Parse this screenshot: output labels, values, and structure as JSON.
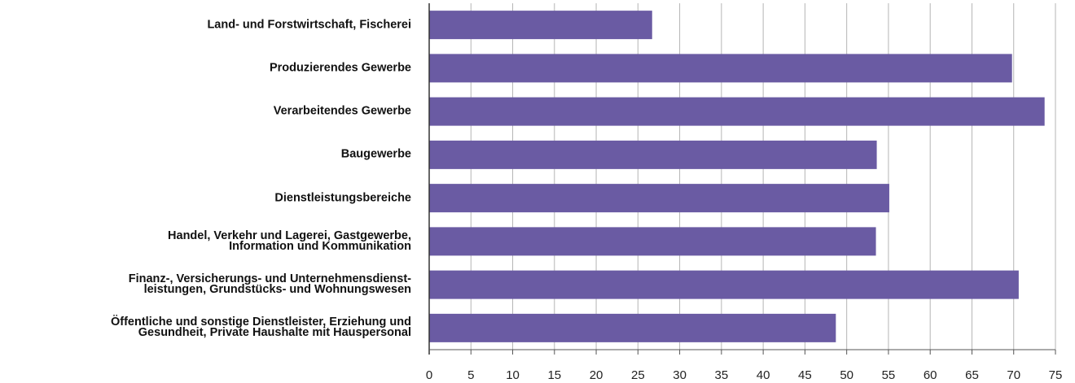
{
  "chart_data": {
    "type": "bar",
    "orientation": "horizontal",
    "categories": [
      "Land- und Forstwirtschaft, Fischerei",
      "Produzierendes Gewerbe",
      "Verarbeitendes Gewerbe",
      "Baugewerbe",
      "Dienstleistungsbereiche",
      "Handel, Verkehr und Lagerei, Gastgewerbe,\nInformation und Kommunikation",
      "Finanz-, Versicherungs- und Unternehmensdienst-\nleistungen, Grundstücks- und Wohnungswesen",
      "Öffentliche und sonstige Dienstleister, Erziehung und\nGesundheit, Private Haushalte mit Hauspersonal"
    ],
    "values": [
      26.7,
      69.8,
      73.7,
      53.6,
      55.1,
      53.5,
      70.6,
      48.7
    ],
    "color": "#6a5ba3",
    "xlim": [
      0,
      75
    ],
    "xticks": [
      0,
      5,
      10,
      15,
      20,
      25,
      30,
      35,
      40,
      45,
      50,
      55,
      60,
      65,
      70,
      75
    ],
    "grid": true
  }
}
